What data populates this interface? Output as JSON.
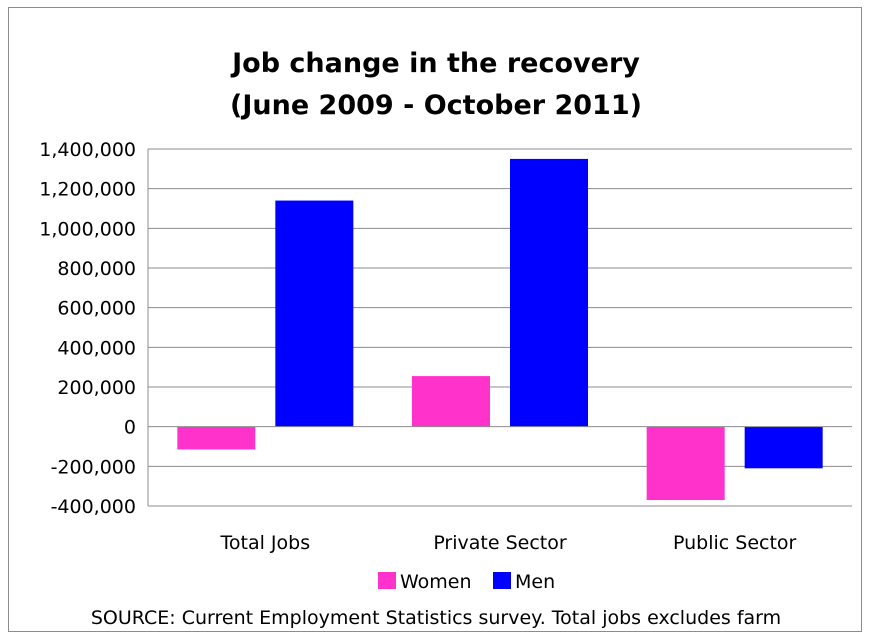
{
  "chart_data": {
    "type": "bar",
    "title_lines": [
      "Job change in the recovery",
      "(June 2009 - October 2011)"
    ],
    "categories": [
      "Total Jobs",
      "Private Sector",
      "Public Sector"
    ],
    "series": [
      {
        "name": "Women",
        "color": "#ff33cc",
        "values": [
          -115000,
          255000,
          -370000
        ]
      },
      {
        "name": "Men",
        "color": "#0000ff",
        "values": [
          1140000,
          1350000,
          -210000
        ]
      }
    ],
    "ylim": [
      -400000,
      1400000
    ],
    "y_ticks": [
      1400000,
      1200000,
      1000000,
      800000,
      600000,
      400000,
      200000,
      0,
      -200000,
      -400000
    ],
    "y_tick_labels": [
      "1,400,000",
      "1,200,000",
      "1,000,000",
      "800,000",
      "600,000",
      "400,000",
      "200,000",
      "0",
      "-200,000",
      "-400,000"
    ],
    "grid": true,
    "legend_position": "bottom",
    "source": "SOURCE: Current Employment Statistics survey.  Total jobs excludes farm"
  }
}
